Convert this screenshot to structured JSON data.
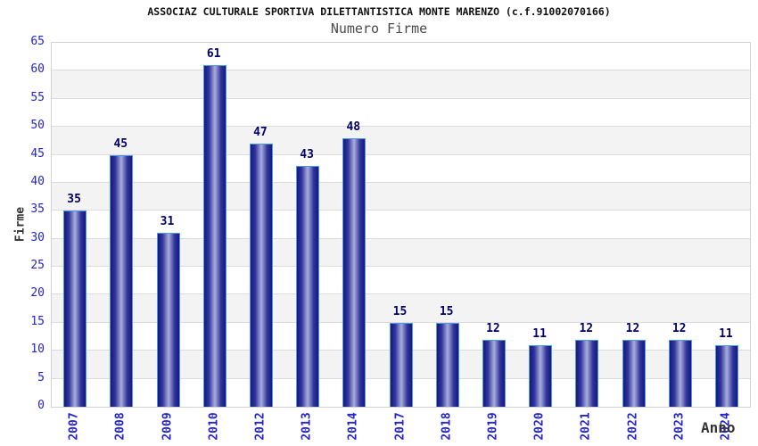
{
  "header": {
    "title": "ASSOCIAZ CULTURALE SPORTIVA DILETTANTISTICA MONTE MARENZO (c.f.91002070166)",
    "subtitle": "Numero Firme"
  },
  "chart_data": {
    "type": "bar",
    "title": "ASSOCIAZ CULTURALE SPORTIVA DILETTANTISTICA MONTE MARENZO (c.f.91002070166)",
    "subtitle": "Numero Firme",
    "categories": [
      "2007",
      "2008",
      "2009",
      "2010",
      "2012",
      "2013",
      "2014",
      "2017",
      "2018",
      "2019",
      "2020",
      "2021",
      "2022",
      "2023",
      "2024"
    ],
    "values": [
      35,
      45,
      31,
      61,
      47,
      43,
      48,
      15,
      15,
      12,
      11,
      12,
      12,
      12,
      11
    ],
    "xlabel": "Anno",
    "ylabel": "Firme",
    "ylim": [
      0,
      65
    ],
    "ytick_step": 5,
    "grid": true,
    "legend": "none",
    "show_value_labels": true,
    "colors": {
      "tick_label": "#2323cf",
      "value_label": "#000066",
      "title": "#111111",
      "subtitle": "#4a4a4a",
      "axis_title": "#333333",
      "gridline": "#dcdcdc",
      "band_white": "#ffffff",
      "band_gray": "#f3f3f3",
      "plot_border": "#d2d2d2",
      "bar_outline": "#4a9ae8",
      "bar_edge": "#17177d",
      "bar_mid": "#30359c",
      "bar_center": "#a9aedd"
    }
  }
}
